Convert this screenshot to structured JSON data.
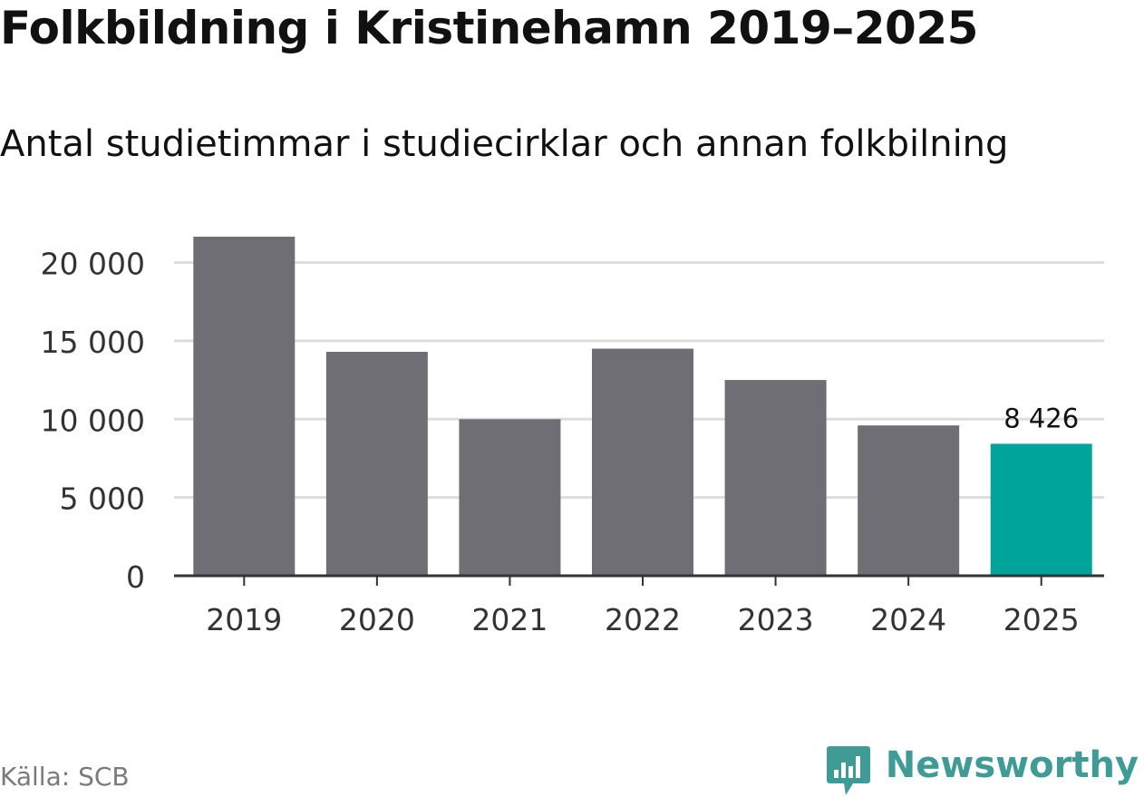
{
  "title": "Folkbildning i Kristinehamn 2019–2025",
  "subtitle": "Antal studietimmar i studiecirklar och annan folkbilning",
  "source": "Källa: SCB",
  "brand": {
    "name": "Newsworthy",
    "color": "#3f9b96",
    "icon": "newsworthy-chart-icon"
  },
  "colors": {
    "bar": "#6f6e74",
    "highlight": "#00a49a",
    "grid": "#dddddd",
    "axis": "#333333"
  },
  "chart_data": {
    "type": "bar",
    "categories": [
      "2019",
      "2020",
      "2021",
      "2022",
      "2023",
      "2024",
      "2025"
    ],
    "values": [
      21650,
      14300,
      10000,
      14500,
      12500,
      9600,
      8426
    ],
    "highlight_index": 6,
    "data_labels": [
      {
        "index": 6,
        "text": "8 426"
      }
    ],
    "yticks": [
      0,
      5000,
      10000,
      15000,
      20000
    ],
    "ytick_labels": [
      "0",
      "5 000",
      "10 000",
      "15 000",
      "20 000"
    ],
    "ylim": [
      0,
      22000
    ],
    "grid": true,
    "legend": "none"
  }
}
